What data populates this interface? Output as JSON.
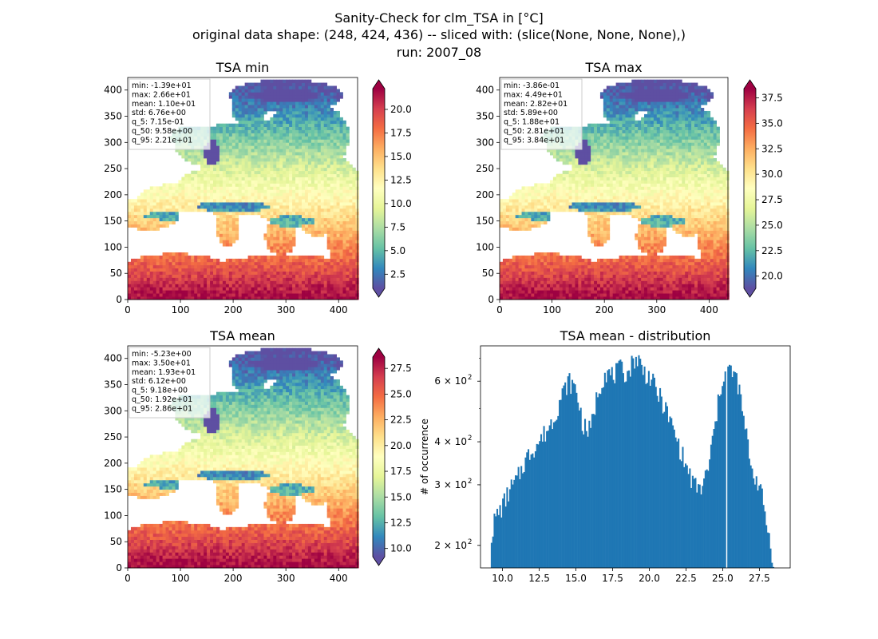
{
  "figure": {
    "title_line1": "Sanity-Check for clm_TSA in [°C]",
    "title_line2": "original data shape: (248, 424, 436) -- sliced with: (slice(None, None, None),)",
    "title_line3": "run: 2007_08"
  },
  "colors": {
    "hist_bar": "#1f77b4",
    "colormap": [
      "#5e4fa2",
      "#3288bd",
      "#66c2a5",
      "#abdda4",
      "#e6f598",
      "#ffffbf",
      "#fee08b",
      "#fdae61",
      "#f46d43",
      "#d53e4f",
      "#9e0142"
    ]
  },
  "chart_data": [
    {
      "type": "heatmap",
      "title": "TSA min",
      "colormap": "Spectral_r",
      "xlim": [
        0,
        436
      ],
      "ylim": [
        0,
        424
      ],
      "x_ticks": [
        "0",
        "100",
        "200",
        "300",
        "400"
      ],
      "y_ticks": [
        "0",
        "50",
        "100",
        "150",
        "200",
        "250",
        "300",
        "350",
        "400"
      ],
      "colorbar": {
        "range": [
          1.0,
          22.2
        ],
        "ticks": [
          "2.5",
          "5.0",
          "7.5",
          "10.0",
          "12.5",
          "15.0",
          "17.5",
          "20.0"
        ]
      },
      "stats": [
        "min: -1.39e+01",
        "max: 2.66e+01",
        "mean: 1.10e+01",
        "std: 6.76e+00",
        "q_5: 7.15e-01",
        "q_50: 9.58e+00",
        "q_95: 2.21e+01"
      ]
    },
    {
      "type": "heatmap",
      "title": "TSA max",
      "colormap": "Spectral_r",
      "xlim": [
        0,
        436
      ],
      "ylim": [
        0,
        424
      ],
      "x_ticks": [
        "0",
        "100",
        "200",
        "300",
        "400"
      ],
      "y_ticks": [
        "0",
        "50",
        "100",
        "150",
        "200",
        "250",
        "300",
        "350",
        "400"
      ],
      "colorbar": {
        "range": [
          18.8,
          38.4
        ],
        "ticks": [
          "20.0",
          "22.5",
          "25.0",
          "27.5",
          "30.0",
          "32.5",
          "35.0",
          "37.5"
        ]
      },
      "stats": [
        "min: -3.86e-01",
        "max: 4.49e+01",
        "mean: 2.82e+01",
        "std: 5.89e+00",
        "q_5: 1.88e+01",
        "q_50: 2.81e+01",
        "q_95: 3.84e+01"
      ]
    },
    {
      "type": "heatmap",
      "title": "TSA mean",
      "colormap": "Spectral_r",
      "xlim": [
        0,
        436
      ],
      "ylim": [
        0,
        424
      ],
      "x_ticks": [
        "0",
        "100",
        "200",
        "300",
        "400"
      ],
      "y_ticks": [
        "0",
        "50",
        "100",
        "150",
        "200",
        "250",
        "300",
        "350",
        "400"
      ],
      "colorbar": {
        "range": [
          9.2,
          28.6
        ],
        "ticks": [
          "10.0",
          "12.5",
          "15.0",
          "17.5",
          "20.0",
          "22.5",
          "25.0",
          "27.5"
        ]
      },
      "stats": [
        "min: -5.23e+00",
        "max: 3.50e+01",
        "mean: 1.93e+01",
        "std: 6.12e+00",
        "q_5: 9.18e+00",
        "q_50: 1.92e+01",
        "q_95: 2.86e+01"
      ]
    },
    {
      "type": "bar",
      "title": "TSA mean - distribution",
      "ylabel": "# of occurrence",
      "yscale": "log",
      "xlim": [
        8.5,
        29.6
      ],
      "ylim": [
        172,
        760
      ],
      "x_ticks": [
        "10.0",
        "12.5",
        "15.0",
        "17.5",
        "20.0",
        "22.5",
        "25.0",
        "27.5"
      ],
      "y_ticks": [
        {
          "value": 200,
          "base": "2 × 10",
          "exp": "2"
        },
        {
          "value": 300,
          "base": "3 × 10",
          "exp": "2"
        },
        {
          "value": 400,
          "base": "4 × 10",
          "exp": "2"
        },
        {
          "value": 600,
          "base": "6 × 10",
          "exp": "2"
        }
      ],
      "bin_range": [
        9.2,
        28.5
      ],
      "bin_count": 200,
      "profile_x": [
        9.2,
        9.5,
        10.0,
        10.5,
        11.0,
        11.5,
        12.0,
        12.5,
        13.0,
        13.5,
        14.0,
        14.5,
        15.0,
        15.5,
        16.0,
        16.5,
        17.0,
        17.5,
        18.0,
        18.5,
        19.0,
        19.3,
        19.6,
        20.0,
        20.5,
        21.0,
        21.5,
        22.0,
        22.5,
        23.0,
        23.5,
        24.0,
        24.5,
        25.0,
        25.5,
        26.0,
        26.5,
        27.0,
        27.5,
        28.0,
        28.5
      ],
      "profile_y": [
        210,
        240,
        260,
        290,
        310,
        350,
        380,
        400,
        430,
        470,
        540,
        600,
        570,
        440,
        430,
        560,
        640,
        620,
        650,
        630,
        700,
        690,
        640,
        620,
        560,
        510,
        450,
        390,
        340,
        300,
        290,
        330,
        450,
        620,
        650,
        600,
        440,
        330,
        300,
        230,
        175
      ],
      "gap_x": 25.3
    }
  ]
}
